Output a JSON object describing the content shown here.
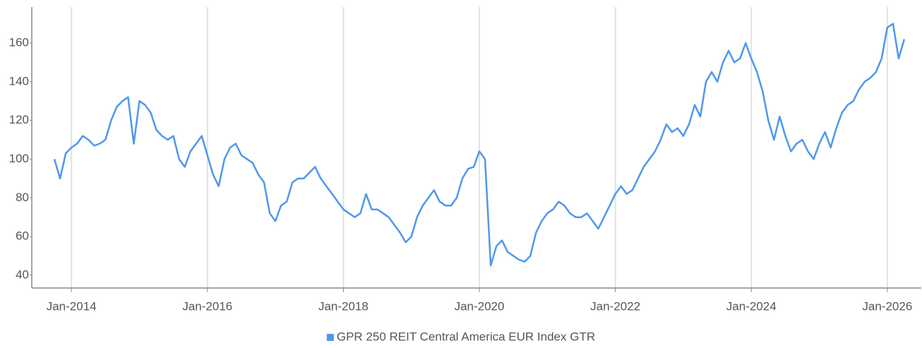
{
  "chart_data": {
    "type": "line",
    "x": [
      "2013-10",
      "2013-11",
      "2013-12",
      "2014-01",
      "2014-02",
      "2014-03",
      "2014-04",
      "2014-05",
      "2014-06",
      "2014-07",
      "2014-08",
      "2014-09",
      "2014-10",
      "2014-11",
      "2014-12",
      "2015-01",
      "2015-02",
      "2015-03",
      "2015-04",
      "2015-05",
      "2015-06",
      "2015-07",
      "2015-08",
      "2015-09",
      "2015-10",
      "2015-11",
      "2015-12",
      "2016-01",
      "2016-02",
      "2016-03",
      "2016-04",
      "2016-05",
      "2016-06",
      "2016-07",
      "2016-08",
      "2016-09",
      "2016-10",
      "2016-11",
      "2016-12",
      "2017-01",
      "2017-02",
      "2017-03",
      "2017-04",
      "2017-05",
      "2017-06",
      "2017-07",
      "2017-08",
      "2017-09",
      "2017-10",
      "2017-11",
      "2017-12",
      "2018-01",
      "2018-02",
      "2018-03",
      "2018-04",
      "2018-05",
      "2018-06",
      "2018-07",
      "2018-08",
      "2018-09",
      "2018-10",
      "2018-11",
      "2018-12",
      "2019-01",
      "2019-02",
      "2019-03",
      "2019-04",
      "2019-05",
      "2019-06",
      "2019-07",
      "2019-08",
      "2019-09",
      "2019-10",
      "2019-11",
      "2019-12",
      "2020-01",
      "2020-02",
      "2020-03",
      "2020-04",
      "2020-05",
      "2020-06",
      "2020-07",
      "2020-08",
      "2020-09",
      "2020-10",
      "2020-11",
      "2020-12",
      "2021-01",
      "2021-02",
      "2021-03",
      "2021-04",
      "2021-05",
      "2021-06",
      "2021-07",
      "2021-08",
      "2021-09",
      "2021-10",
      "2021-11",
      "2021-12",
      "2022-01",
      "2022-02",
      "2022-03",
      "2022-04",
      "2022-05",
      "2022-06",
      "2022-07",
      "2022-08",
      "2022-09",
      "2022-10",
      "2022-11",
      "2022-12",
      "2023-01",
      "2023-02",
      "2023-03",
      "2023-04",
      "2023-05",
      "2023-06",
      "2023-07",
      "2023-08",
      "2023-09",
      "2023-10",
      "2023-11",
      "2023-12",
      "2024-01",
      "2024-02",
      "2024-03",
      "2024-04",
      "2024-05",
      "2024-06",
      "2024-07",
      "2024-08",
      "2024-09",
      "2024-10",
      "2024-11",
      "2024-12",
      "2025-01",
      "2025-02",
      "2025-03",
      "2025-04",
      "2025-05",
      "2025-06",
      "2025-07",
      "2025-08",
      "2025-09",
      "2025-10",
      "2025-11",
      "2025-12",
      "2026-01",
      "2026-02",
      "2026-03",
      "2026-04"
    ],
    "series": [
      {
        "name": "GPR 250 REIT Central America EUR Index GTR",
        "color": "#4f97ee",
        "values": [
          100,
          90,
          103,
          106,
          108,
          112,
          110,
          107,
          108,
          110,
          120,
          127,
          130,
          132,
          108,
          130,
          128,
          124,
          115,
          112,
          110,
          112,
          100,
          96,
          104,
          108,
          112,
          102,
          92,
          86,
          100,
          106,
          108,
          102,
          100,
          98,
          92,
          88,
          72,
          68,
          76,
          78,
          88,
          90,
          90,
          93,
          96,
          90,
          86,
          82,
          78,
          74,
          72,
          70,
          72,
          82,
          74,
          74,
          72,
          70,
          66,
          62,
          57,
          60,
          70,
          76,
          80,
          84,
          78,
          76,
          76,
          80,
          90,
          95,
          96,
          104,
          100,
          45,
          55,
          58,
          52,
          50,
          48,
          47,
          50,
          62,
          68,
          72,
          74,
          78,
          76,
          72,
          70,
          70,
          72,
          68,
          64,
          70,
          76,
          82,
          86,
          82,
          84,
          90,
          96,
          100,
          104,
          110,
          118,
          114,
          116,
          112,
          118,
          128,
          122,
          140,
          145,
          140,
          150,
          156,
          150,
          152,
          160,
          152,
          145,
          135,
          120,
          110,
          122,
          112,
          104,
          108,
          110,
          104,
          100,
          108,
          114,
          106,
          116,
          124,
          128,
          130,
          136,
          140,
          142,
          145,
          152,
          168,
          170,
          152,
          162
        ]
      }
    ],
    "xlim": [
      "2013-06",
      "2026-07"
    ],
    "xticks": [
      {
        "value": "2014-01",
        "label": "Jan-2014"
      },
      {
        "value": "2016-01",
        "label": "Jan-2016"
      },
      {
        "value": "2018-01",
        "label": "Jan-2018"
      },
      {
        "value": "2020-01",
        "label": "Jan-2020"
      },
      {
        "value": "2022-01",
        "label": "Jan-2022"
      },
      {
        "value": "2024-01",
        "label": "Jan-2024"
      },
      {
        "value": "2026-01",
        "label": "Jan-2026"
      }
    ],
    "ylim": [
      33.4,
      178.6
    ],
    "yticks": [
      40,
      60,
      80,
      100,
      120,
      140,
      160
    ],
    "grid": "x",
    "legend": "bottom"
  }
}
